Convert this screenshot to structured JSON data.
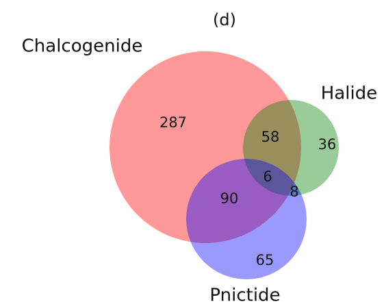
{
  "chart_data": {
    "type": "venn",
    "title": "(d)",
    "sets": [
      {
        "name": "Chalcogenide",
        "color": "#ff0000"
      },
      {
        "name": "Halide",
        "color": "#008000"
      },
      {
        "name": "Pnictide",
        "color": "#0000ff"
      }
    ],
    "values": [
      287,
      36,
      58,
      65,
      90,
      8,
      6
    ]
  }
}
